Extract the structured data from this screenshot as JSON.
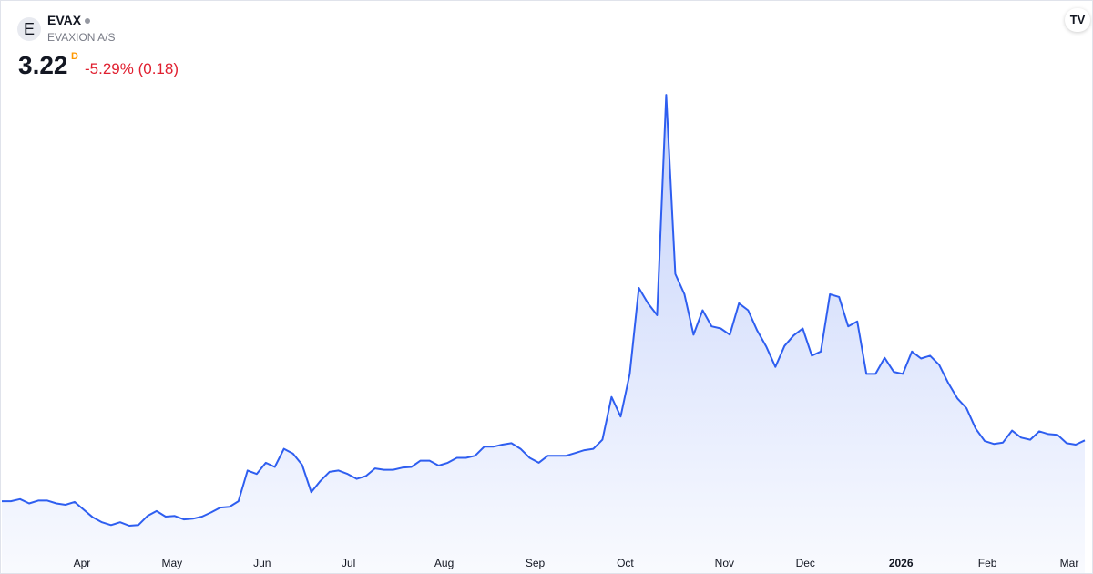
{
  "header": {
    "icon": "E",
    "symbol": "EVAX",
    "name": "EVAXION A/S",
    "price": 3.22,
    "interval": "D",
    "change": "-5.29% (0.18)"
  },
  "chart_data": {
    "type": "area",
    "color": "#2e5ef0",
    "values": [
      2.35,
      2.35,
      2.38,
      2.32,
      2.36,
      2.36,
      2.32,
      2.3,
      2.34,
      2.23,
      2.12,
      2.05,
      2.01,
      2.05,
      2.0,
      2.01,
      2.14,
      2.21,
      2.13,
      2.14,
      2.09,
      2.1,
      2.13,
      2.19,
      2.26,
      2.27,
      2.35,
      2.79,
      2.74,
      2.9,
      2.84,
      3.1,
      3.03,
      2.87,
      2.48,
      2.64,
      2.77,
      2.79,
      2.74,
      2.67,
      2.71,
      2.82,
      2.8,
      2.8,
      2.83,
      2.84,
      2.93,
      2.93,
      2.86,
      2.9,
      2.97,
      2.97,
      3.0,
      3.13,
      3.13,
      3.16,
      3.18,
      3.1,
      2.97,
      2.9,
      3.0,
      3.0,
      3.0,
      3.04,
      3.08,
      3.1,
      3.23,
      3.84,
      3.56,
      4.17,
      5.4,
      5.18,
      5.01,
      8.16,
      5.6,
      5.31,
      4.73,
      5.08,
      4.85,
      4.82,
      4.73,
      5.18,
      5.08,
      4.79,
      4.56,
      4.27,
      4.57,
      4.72,
      4.82,
      4.43,
      4.49,
      5.31,
      5.27,
      4.85,
      4.92,
      4.17,
      4.17,
      4.4,
      4.2,
      4.17,
      4.49,
      4.39,
      4.43,
      4.3,
      4.04,
      3.82,
      3.68,
      3.39,
      3.21,
      3.17,
      3.19,
      3.36,
      3.26,
      3.23,
      3.35,
      3.31,
      3.3,
      3.18,
      3.16,
      3.22
    ],
    "xlim": [
      0,
      119
    ],
    "ylim": [
      1.31,
      8.33
    ],
    "xticks": [
      {
        "value": 8.8,
        "label": "Apr"
      },
      {
        "value": 18.7,
        "label": "May"
      },
      {
        "value": 28.6,
        "label": "Jun"
      },
      {
        "value": 38.1,
        "label": "Jul"
      },
      {
        "value": 48.6,
        "label": "Aug"
      },
      {
        "value": 58.6,
        "label": "Sep"
      },
      {
        "value": 68.5,
        "label": "Oct"
      },
      {
        "value": 79.4,
        "label": "Nov"
      },
      {
        "value": 88.3,
        "label": "Dec"
      },
      {
        "value": 98.8,
        "label": "2026",
        "emphasis": true
      },
      {
        "value": 108.3,
        "label": "Feb"
      },
      {
        "value": 117.3,
        "label": "Mar"
      }
    ]
  }
}
